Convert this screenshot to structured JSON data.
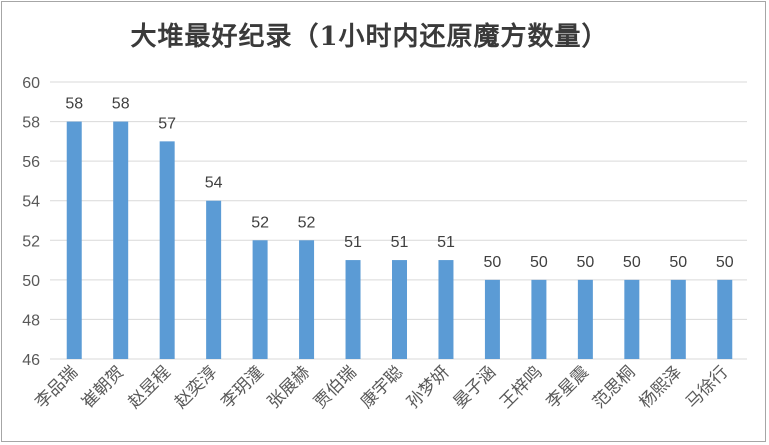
{
  "chart_data": {
    "type": "bar",
    "title": "大堆最好纪录（1小时内还原魔方数量）",
    "xlabel": "",
    "ylabel": "",
    "ylim": [
      46,
      60
    ],
    "yticks": [
      46,
      48,
      50,
      52,
      54,
      56,
      58,
      60
    ],
    "grid": true,
    "legend": "none",
    "bar_color": "#5b9bd5",
    "categories": [
      "李品瑞",
      "崔朝贺",
      "赵昱程",
      "赵奕淳",
      "李玥潼",
      "张展赫",
      "贾伯瑞",
      "康宇聪",
      "孙梦妍",
      "晏子涵",
      "王梓鸣",
      "李星震",
      "范思桐",
      "杨熙泽",
      "马徐行"
    ],
    "values": [
      58,
      58,
      57,
      54,
      52,
      52,
      51,
      51,
      51,
      50,
      50,
      50,
      50,
      50,
      50
    ]
  }
}
